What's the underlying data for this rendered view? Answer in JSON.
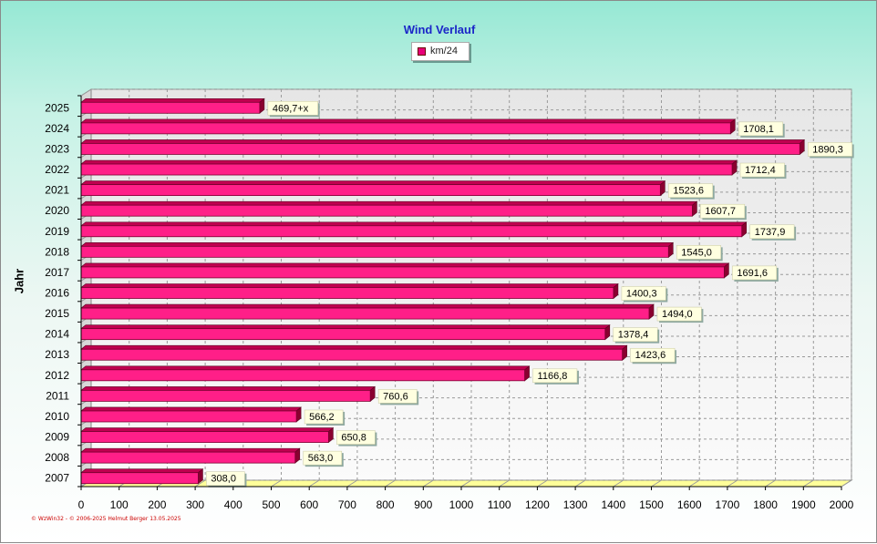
{
  "chart_data": {
    "type": "bar",
    "orientation": "horizontal",
    "title": "Wind Verlauf",
    "ylabel": "Jahr",
    "xlabel": "",
    "xlim": [
      0,
      2000
    ],
    "xticks": [
      "0",
      "100",
      "200",
      "300",
      "400",
      "500",
      "600",
      "700",
      "800",
      "900",
      "1000",
      "1100",
      "1200",
      "1300",
      "1400",
      "1500",
      "1600",
      "1700",
      "1800",
      "1900",
      "2000"
    ],
    "grid": true,
    "legend_position": "top-center",
    "categories": [
      "2025",
      "2024",
      "2023",
      "2022",
      "2021",
      "2020",
      "2019",
      "2018",
      "2017",
      "2016",
      "2015",
      "2014",
      "2013",
      "2012",
      "2011",
      "2010",
      "2009",
      "2008",
      "2007"
    ],
    "series": [
      {
        "name": "km/24",
        "color": "#ff1f88",
        "values": [
          469.7,
          1708.1,
          1890.3,
          1712.4,
          1523.6,
          1607.7,
          1737.9,
          1545.0,
          1691.6,
          1400.3,
          1494.0,
          1378.4,
          1423.6,
          1166.8,
          760.6,
          566.2,
          650.8,
          563.0,
          308.0
        ],
        "labels": [
          "469,7+x",
          "1708,1",
          "1890,3",
          "1712,4",
          "1523,6",
          "1607,7",
          "1737,9",
          "1545,0",
          "1691,6",
          "1400,3",
          "1494,0",
          "1378,4",
          "1423,6",
          "1166,8",
          "760,6",
          "566,2",
          "650,8",
          "563,0",
          "308,0"
        ]
      }
    ]
  },
  "footer": {
    "copyright": "© WzWin32  -  © 2006-2025 Helmut Berger  13.05.2025"
  }
}
